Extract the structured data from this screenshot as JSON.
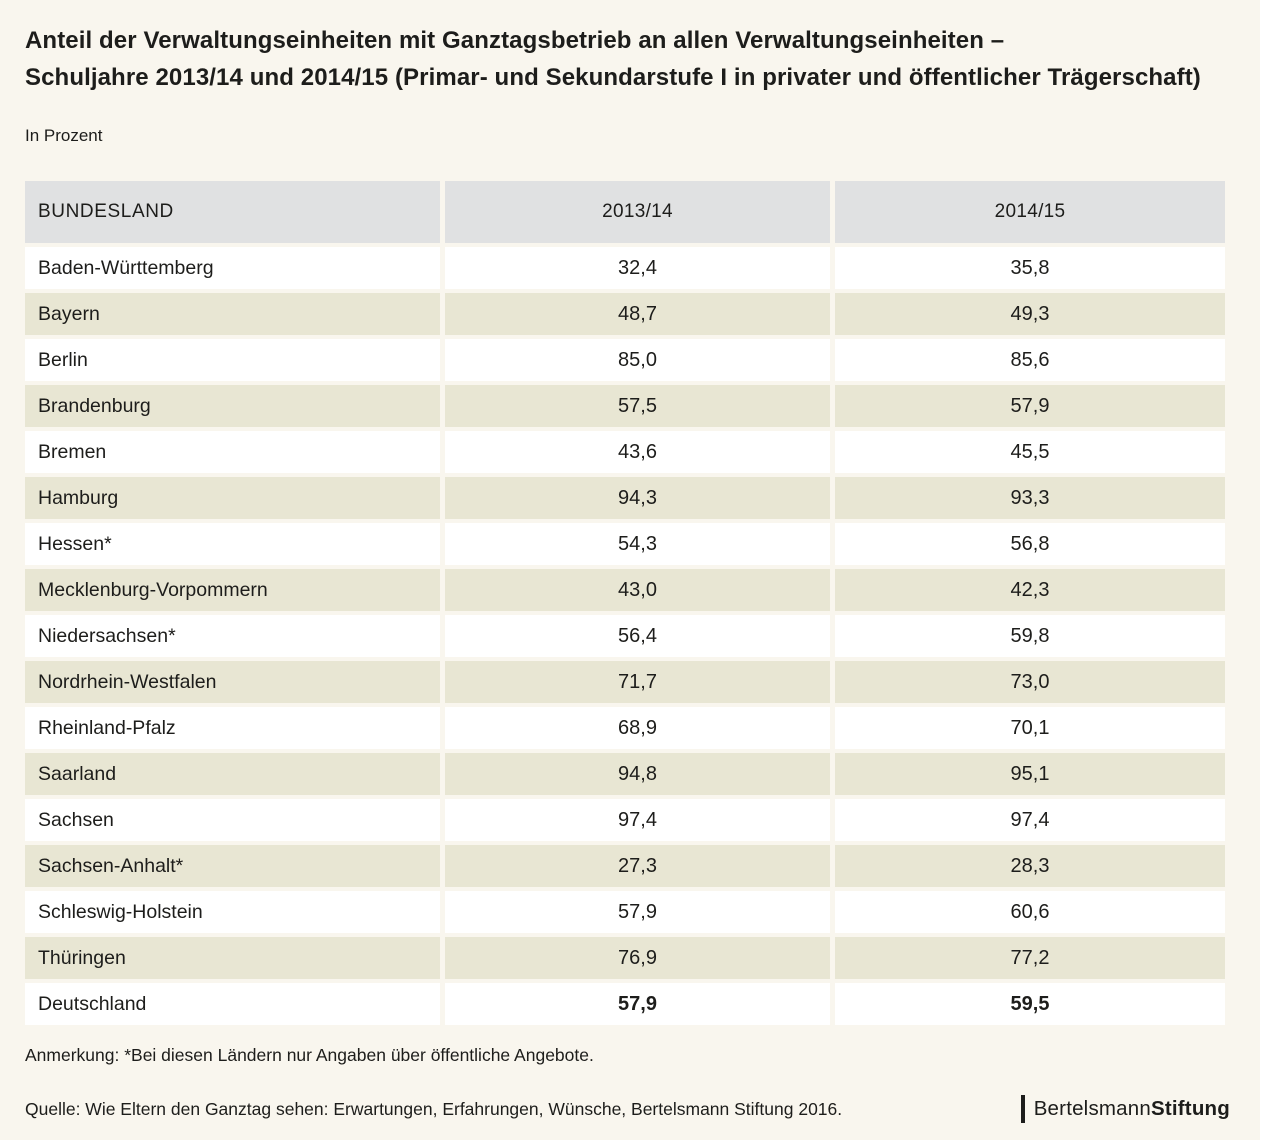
{
  "title_line1": "Anteil der Verwaltungseinheiten mit Ganztagsbetrieb an allen Verwaltungseinheiten –",
  "title_line2": "Schuljahre 2013/14 und 2014/15 (Primar- und Sekundarstufe I in privater und öffentlicher Trägerschaft)",
  "subtitle": "In Prozent",
  "table": {
    "headers": [
      "BUNDESLAND",
      "2013/14",
      "2014/15"
    ],
    "rows": [
      {
        "name": "Baden-Württemberg",
        "v2013": "32,4",
        "v2014": "35,8",
        "emphasis": false
      },
      {
        "name": "Bayern",
        "v2013": "48,7",
        "v2014": "49,3",
        "emphasis": false
      },
      {
        "name": "Berlin",
        "v2013": "85,0",
        "v2014": "85,6",
        "emphasis": false
      },
      {
        "name": "Brandenburg",
        "v2013": "57,5",
        "v2014": "57,9",
        "emphasis": false
      },
      {
        "name": "Bremen",
        "v2013": "43,6",
        "v2014": "45,5",
        "emphasis": false
      },
      {
        "name": "Hamburg",
        "v2013": "94,3",
        "v2014": "93,3",
        "emphasis": false
      },
      {
        "name": "Hessen*",
        "v2013": "54,3",
        "v2014": "56,8",
        "emphasis": false
      },
      {
        "name": "Mecklenburg-Vorpommern",
        "v2013": "43,0",
        "v2014": "42,3",
        "emphasis": false
      },
      {
        "name": "Niedersachsen*",
        "v2013": "56,4",
        "v2014": "59,8",
        "emphasis": false
      },
      {
        "name": "Nordrhein-Westfalen",
        "v2013": "71,7",
        "v2014": "73,0",
        "emphasis": false
      },
      {
        "name": "Rheinland-Pfalz",
        "v2013": "68,9",
        "v2014": "70,1",
        "emphasis": false
      },
      {
        "name": "Saarland",
        "v2013": "94,8",
        "v2014": "95,1",
        "emphasis": false
      },
      {
        "name": "Sachsen",
        "v2013": "97,4",
        "v2014": "97,4",
        "emphasis": false
      },
      {
        "name": "Sachsen-Anhalt*",
        "v2013": "27,3",
        "v2014": "28,3",
        "emphasis": false
      },
      {
        "name": "Schleswig-Holstein",
        "v2013": "57,9",
        "v2014": "60,6",
        "emphasis": false
      },
      {
        "name": "Thüringen",
        "v2013": "76,9",
        "v2014": "77,2",
        "emphasis": false
      },
      {
        "name": "Deutschland",
        "v2013": "57,9",
        "v2014": "59,5",
        "emphasis": true
      }
    ]
  },
  "note": "Anmerkung: *Bei diesen Ländern nur Angaben über öffentliche Angebote.",
  "source": "Quelle: Wie Eltern den Ganztag sehen: Erwartungen, Erfahrungen, Wünsche, Bertelsmann Stiftung 2016.",
  "logo": {
    "part1": "Bertelsmann",
    "part2": "Stiftung"
  },
  "colors": {
    "background": "#f9f6ee",
    "header_bg": "#e0e1e2",
    "row_white": "#ffffff",
    "row_beige": "#e8e6d3",
    "text": "#1d1d1b"
  },
  "chart_data": {
    "type": "table",
    "title": "Anteil der Verwaltungseinheiten mit Ganztagsbetrieb an allen Verwaltungseinheiten – Schuljahre 2013/14 und 2014/15 (Primar- und Sekundarstufe I in privater und öffentlicher Trägerschaft)",
    "unit": "In Prozent",
    "categories": [
      "Baden-Württemberg",
      "Bayern",
      "Berlin",
      "Brandenburg",
      "Bremen",
      "Hamburg",
      "Hessen*",
      "Mecklenburg-Vorpommern",
      "Niedersachsen*",
      "Nordrhein-Westfalen",
      "Rheinland-Pfalz",
      "Saarland",
      "Sachsen",
      "Sachsen-Anhalt*",
      "Schleswig-Holstein",
      "Thüringen",
      "Deutschland"
    ],
    "series": [
      {
        "name": "2013/14",
        "values": [
          32.4,
          48.7,
          85.0,
          57.5,
          43.6,
          94.3,
          54.3,
          43.0,
          56.4,
          71.7,
          68.9,
          94.8,
          97.4,
          27.3,
          57.9,
          76.9,
          57.9
        ]
      },
      {
        "name": "2014/15",
        "values": [
          35.8,
          49.3,
          85.6,
          57.9,
          45.5,
          93.3,
          56.8,
          42.3,
          59.8,
          73.0,
          70.1,
          95.1,
          97.4,
          28.3,
          60.6,
          77.2,
          59.5
        ]
      }
    ],
    "note": "Anmerkung: *Bei diesen Ländern nur Angaben über öffentliche Angebote.",
    "source": "Quelle: Wie Eltern den Ganztag sehen: Erwartungen, Erfahrungen, Wünsche, Bertelsmann Stiftung 2016."
  }
}
